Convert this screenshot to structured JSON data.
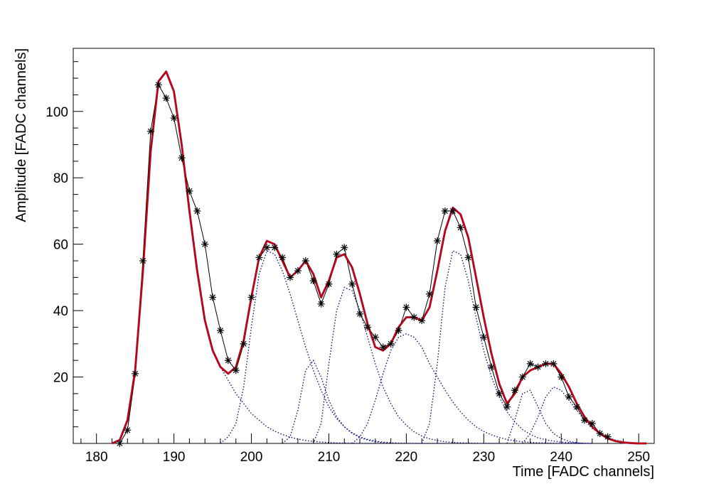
{
  "chart_data": {
    "type": "line",
    "title": "",
    "xlabel": "Time [FADC channels]",
    "ylabel": "Amplitude [FADC channels]",
    "xlim": [
      177,
      252
    ],
    "ylim": [
      0,
      119
    ],
    "xticks": [
      180,
      190,
      200,
      210,
      220,
      230,
      240,
      250
    ],
    "yticks": [
      20,
      40,
      60,
      80,
      100
    ],
    "grid": false,
    "legend": "none",
    "colors": {
      "data": "#000000",
      "fit_total": "#cc0000",
      "fit_total_underlay": "#7a2a7a",
      "components": "#00007f"
    },
    "series": [
      {
        "style": "markers-line",
        "x": [
          183,
          184,
          185,
          186,
          187,
          188,
          189,
          190,
          191,
          192,
          193,
          194,
          195,
          196,
          197,
          198,
          199,
          200,
          201,
          202,
          203,
          204,
          205,
          206,
          207,
          208,
          209,
          210,
          211,
          212,
          213,
          214,
          215,
          216,
          217,
          218,
          219,
          220,
          221,
          222,
          223,
          224,
          225,
          226,
          227,
          228,
          229,
          230,
          231,
          232,
          233,
          234,
          235,
          236,
          237,
          238,
          239,
          240,
          241,
          242,
          243,
          244,
          245,
          246
        ],
        "y": [
          0,
          4,
          21,
          55,
          94,
          108,
          104,
          98,
          86,
          76,
          70,
          60,
          44,
          34,
          25,
          22,
          30,
          44,
          56,
          59,
          59,
          56,
          50,
          52,
          55,
          49,
          42,
          48,
          57,
          59,
          48,
          39,
          35,
          32,
          29,
          30,
          34,
          41,
          38,
          37,
          45,
          61,
          70,
          70,
          65,
          56,
          41,
          32,
          23,
          15,
          11,
          16,
          20,
          24,
          23,
          24,
          24,
          20,
          14,
          11,
          7,
          6,
          3,
          2
        ]
      },
      {
        "style": "fit-total",
        "x": [
          182,
          183,
          184,
          185,
          186,
          187,
          188,
          189,
          190,
          191,
          192,
          193,
          194,
          195,
          196,
          197,
          198,
          199,
          200,
          201,
          202,
          203,
          204,
          205,
          206,
          207,
          208,
          209,
          210,
          211,
          212,
          213,
          214,
          215,
          216,
          217,
          218,
          219,
          220,
          221,
          222,
          223,
          224,
          225,
          226,
          227,
          228,
          229,
          230,
          231,
          232,
          233,
          234,
          235,
          236,
          237,
          238,
          239,
          240,
          241,
          242,
          243,
          244,
          245,
          246,
          247,
          248,
          249,
          250,
          251
        ],
        "y": [
          0,
          1,
          7,
          22,
          52,
          88,
          109,
          112,
          106,
          90,
          70,
          52,
          37,
          28,
          23,
          21,
          23,
          31,
          44,
          56,
          61,
          60,
          55,
          50,
          52,
          55,
          51,
          44,
          49,
          56,
          57,
          53,
          45,
          36,
          29,
          28,
          30,
          35,
          38,
          38,
          37,
          41,
          52,
          64,
          71,
          69,
          62,
          50,
          38,
          27,
          18,
          12,
          15,
          20,
          22,
          23,
          24,
          24,
          21,
          17,
          12,
          8,
          5,
          3,
          1.5,
          0.7,
          0.3,
          0.1,
          0,
          0
        ]
      },
      {
        "style": "component",
        "x": [
          182,
          183,
          184,
          185,
          186,
          187,
          188,
          189,
          190,
          191,
          192,
          193,
          194,
          195,
          196,
          197,
          198,
          199,
          200,
          201,
          202,
          203,
          204,
          205,
          206,
          207,
          208,
          209,
          210,
          211,
          212,
          213,
          214,
          215,
          216
        ],
        "y": [
          0,
          1,
          7,
          22,
          52,
          88,
          109,
          112,
          106,
          90,
          70,
          52,
          37,
          28,
          23,
          19,
          15,
          12,
          9,
          7,
          5,
          3.7,
          2.7,
          1.9,
          1.3,
          0.9,
          0.6,
          0.4,
          0.25,
          0.15,
          0.1,
          0.05,
          0.03,
          0.01,
          0
        ]
      },
      {
        "style": "component",
        "x": [
          196,
          197,
          198,
          199,
          200,
          201,
          202,
          203,
          204,
          205,
          206,
          207,
          208,
          209,
          210,
          211,
          212,
          213,
          214,
          215,
          216,
          217,
          218,
          219,
          220,
          221,
          222,
          223,
          224,
          225
        ],
        "y": [
          0,
          2,
          6,
          17,
          35,
          51,
          58,
          57,
          52,
          45,
          37,
          29,
          22,
          16,
          11,
          7.5,
          5,
          3.2,
          2,
          1.2,
          0.7,
          0.4,
          0.2,
          0.1,
          0.05,
          0.02,
          0.01,
          0,
          0,
          0
        ]
      },
      {
        "style": "component",
        "x": [
          204,
          205,
          206,
          207,
          208,
          209,
          210,
          211,
          212,
          213,
          214,
          215,
          216,
          217,
          218
        ],
        "y": [
          0,
          2,
          10,
          22,
          25,
          20,
          13,
          8,
          5,
          3,
          1.8,
          1,
          0.5,
          0.2,
          0
        ]
      },
      {
        "style": "component",
        "x": [
          208,
          209,
          210,
          211,
          212,
          213,
          214,
          215,
          216,
          217,
          218,
          219,
          220,
          221,
          222,
          223,
          224,
          225,
          226,
          227,
          228,
          229,
          230,
          231,
          232
        ],
        "y": [
          0,
          6,
          24,
          40,
          47,
          46,
          40,
          32,
          24,
          17,
          12,
          8,
          5.5,
          3.5,
          2.2,
          1.4,
          0.9,
          0.5,
          0.3,
          0.2,
          0.1,
          0.05,
          0.02,
          0,
          0
        ]
      },
      {
        "style": "component",
        "x": [
          213,
          214,
          215,
          216,
          217,
          218,
          219,
          220,
          221,
          222,
          223,
          224,
          225,
          226,
          227,
          228,
          229,
          230,
          231,
          232,
          233,
          234,
          235,
          236,
          237,
          238,
          239,
          240,
          241,
          242,
          243,
          244
        ],
        "y": [
          0,
          2,
          6,
          13,
          21,
          28,
          32,
          33,
          32,
          29,
          24,
          20,
          16,
          12.5,
          9.5,
          7,
          5,
          3.6,
          2.6,
          1.8,
          1.2,
          0.8,
          0.5,
          0.3,
          0.2,
          0.1,
          0.05,
          0.02,
          0,
          0,
          0,
          0
        ]
      },
      {
        "style": "component",
        "x": [
          222,
          223,
          224,
          225,
          226,
          227,
          228,
          229,
          230,
          231,
          232,
          233,
          234,
          235,
          236,
          237,
          238,
          239,
          240,
          241,
          242,
          243,
          244
        ],
        "y": [
          0,
          6,
          24,
          47,
          58,
          57,
          49,
          38,
          28,
          20,
          14,
          9.5,
          6.5,
          4.2,
          2.7,
          1.7,
          1.1,
          0.7,
          0.4,
          0.25,
          0.15,
          0.05,
          0
        ]
      },
      {
        "style": "component",
        "x": [
          233,
          234,
          235,
          236,
          237,
          238,
          239,
          240,
          241,
          242,
          243
        ],
        "y": [
          0,
          7,
          15,
          16,
          11,
          6,
          3,
          1.5,
          0.6,
          0.2,
          0
        ]
      },
      {
        "style": "component",
        "x": [
          235,
          236,
          237,
          238,
          239,
          240,
          241,
          242,
          243,
          244,
          245,
          246,
          247,
          248,
          249,
          250,
          251
        ],
        "y": [
          0,
          3,
          8,
          14,
          17,
          16,
          13,
          10,
          7,
          4.5,
          3,
          1.8,
          1,
          0.5,
          0.2,
          0.05,
          0
        ]
      }
    ]
  }
}
